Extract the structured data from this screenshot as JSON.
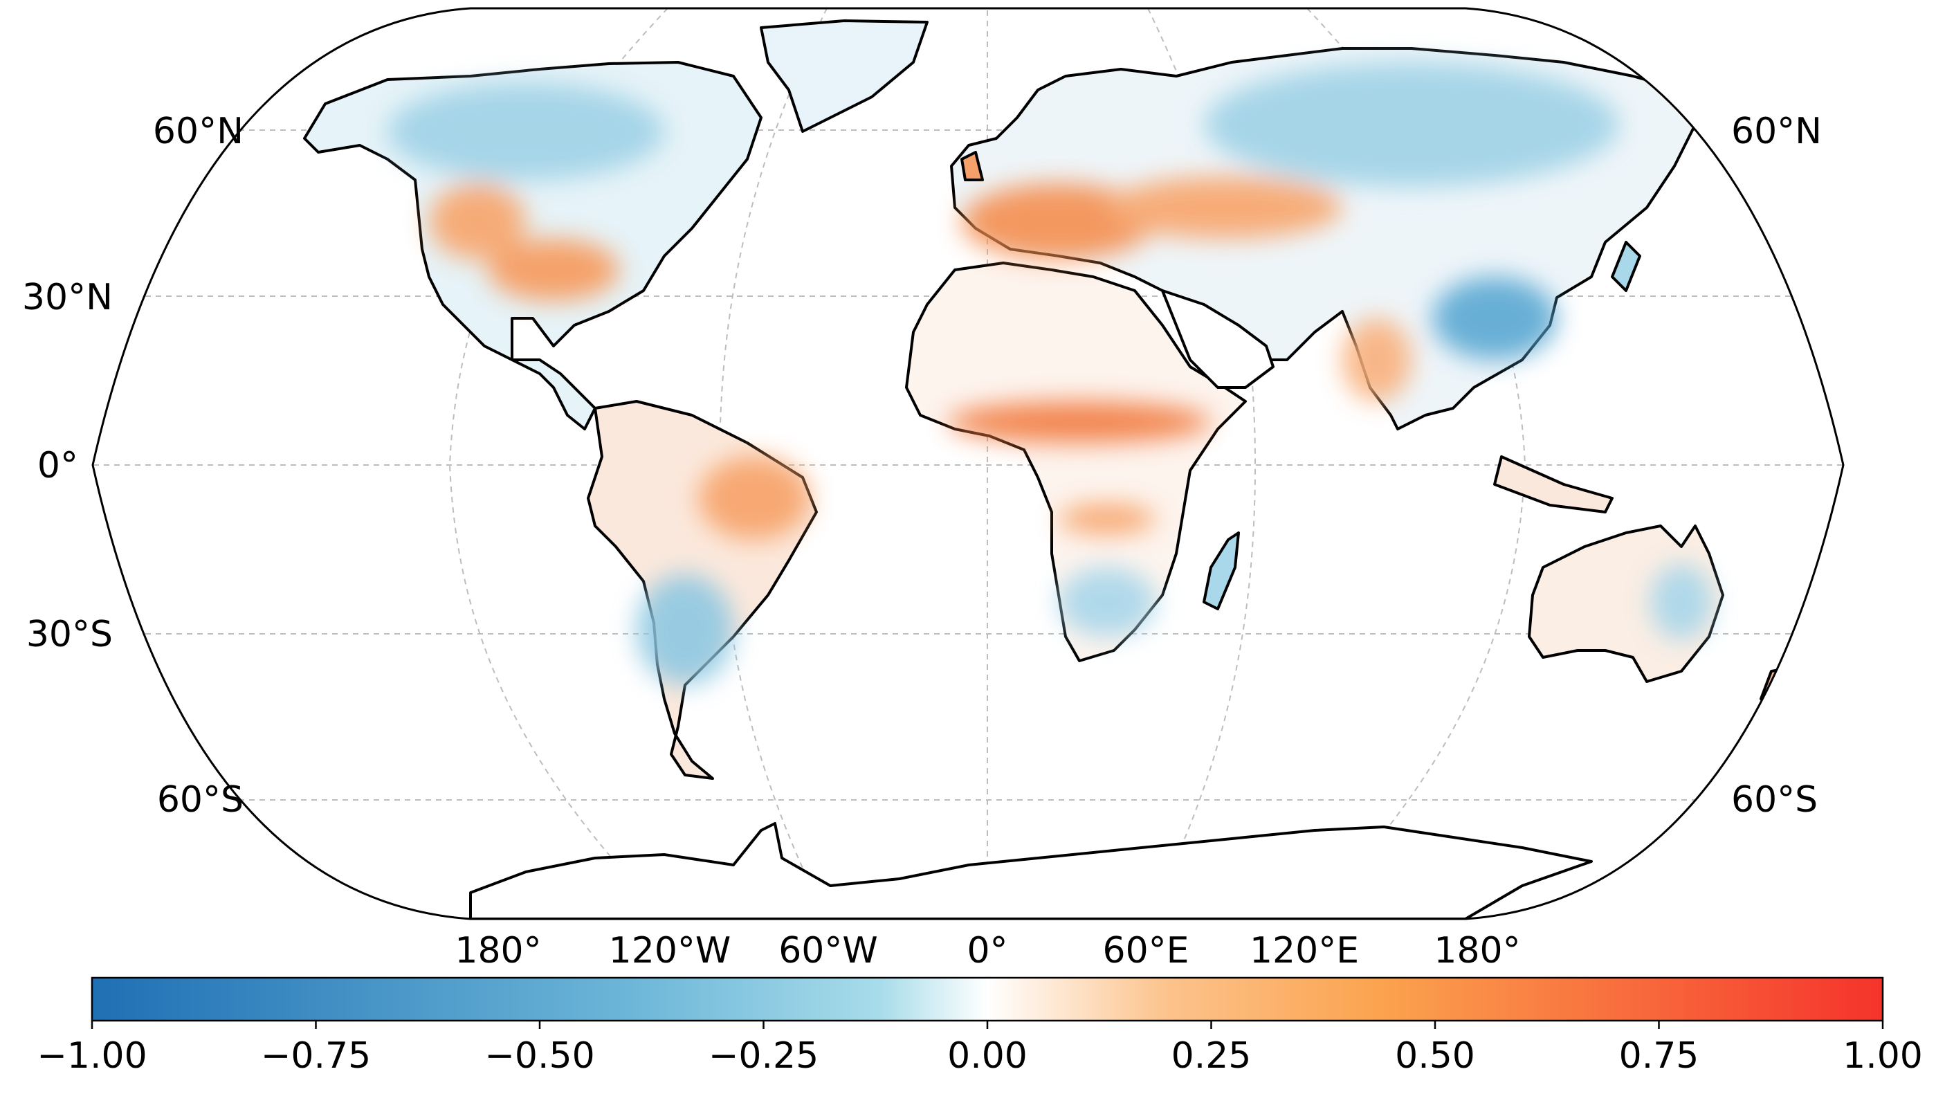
{
  "map": {
    "projection": "Robinson",
    "lat_labels_left": [
      "60°N",
      "30°N",
      "0°",
      "30°S",
      "60°S"
    ],
    "lat_labels_right": [
      "60°N",
      "60°S"
    ],
    "lon_labels": [
      "180°",
      "120°W",
      "60°W",
      "0°",
      "60°E",
      "120°E",
      "180°"
    ],
    "gridlines": true,
    "coastlines": true,
    "regions": [
      {
        "name": "western-us",
        "value": 0.4
      },
      {
        "name": "central-us",
        "value": 0.45
      },
      {
        "name": "canada",
        "value": -0.35
      },
      {
        "name": "europe",
        "value": 0.55
      },
      {
        "name": "sahel",
        "value": 0.7
      },
      {
        "name": "central-asia",
        "value": 0.4
      },
      {
        "name": "siberia",
        "value": -0.4
      },
      {
        "name": "east-china",
        "value": -0.6
      },
      {
        "name": "india",
        "value": 0.3
      },
      {
        "name": "brazil",
        "value": 0.4
      },
      {
        "name": "argentina",
        "value": -0.45
      },
      {
        "name": "southern-africa",
        "value": -0.35
      },
      {
        "name": "australia",
        "value": 0.05
      }
    ]
  },
  "colorbar": {
    "ticks": [
      "−1.00",
      "−0.75",
      "−0.50",
      "−0.25",
      "0.00",
      "0.25",
      "0.50",
      "0.75",
      "1.00"
    ],
    "range": [
      -1,
      1
    ],
    "colors": [
      "#1f6fb4",
      "#86cde2",
      "#ffffff",
      "#fca35b",
      "#f5332b"
    ]
  }
}
